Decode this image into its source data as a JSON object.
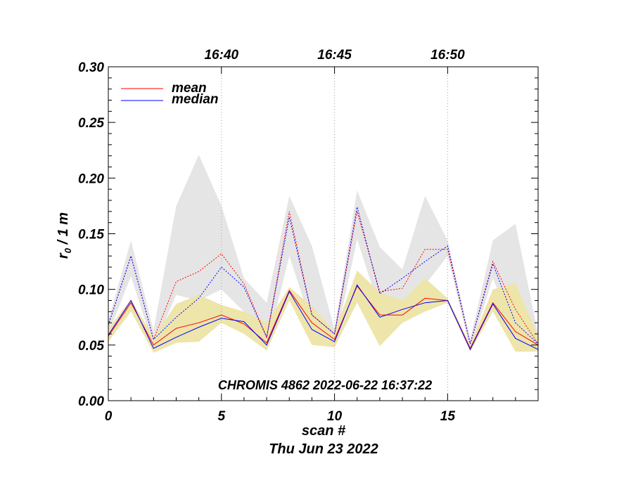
{
  "chart_data": {
    "type": "line",
    "title": "",
    "annotation": "CHROMIS 4862 2022-06-22 16:37:22",
    "xlabel": "scan #",
    "xlabel2": "Thu Jun 23 2022",
    "ylabel_main": "r",
    "ylabel_sub": "0",
    "ylabel_rest": " / 1 m",
    "xlim": [
      0,
      19
    ],
    "ylim": [
      0,
      0.3
    ],
    "x_ticks": [
      0,
      5,
      10,
      15
    ],
    "x_tick_labels": [
      "0",
      "5",
      "10",
      "15"
    ],
    "y_ticks": [
      0,
      0.05,
      0.1,
      0.15,
      0.2,
      0.25,
      0.3
    ],
    "y_tick_labels": [
      "0.00",
      "0.05",
      "0.10",
      "0.15",
      "0.20",
      "0.25",
      "0.30"
    ],
    "top_axis": {
      "tick_positions": [
        5,
        10,
        15
      ],
      "labels": [
        "16:40",
        "16:45",
        "16:50"
      ]
    },
    "legend_position": "top-left",
    "x": [
      0,
      1,
      2,
      3,
      4,
      5,
      6,
      7,
      8,
      9,
      10,
      11,
      12,
      13,
      14,
      15,
      16,
      17,
      18,
      19
    ],
    "series": [
      {
        "name": "mean",
        "color": "#ff0000",
        "style": "solid",
        "legend": true,
        "values": [
          0.058,
          0.088,
          0.05,
          0.065,
          0.07,
          0.077,
          0.069,
          0.052,
          0.099,
          0.07,
          0.055,
          0.103,
          0.077,
          0.077,
          0.092,
          0.09,
          0.047,
          0.088,
          0.062,
          0.05
        ]
      },
      {
        "name": "median",
        "color": "#0000ff",
        "style": "solid",
        "legend": true,
        "values": [
          0.059,
          0.09,
          0.047,
          0.057,
          0.066,
          0.074,
          0.071,
          0.05,
          0.098,
          0.064,
          0.053,
          0.104,
          0.075,
          0.082,
          0.088,
          0.09,
          0.046,
          0.087,
          0.056,
          0.046
        ]
      },
      {
        "name": "mean (dotted)",
        "color": "#ff0000",
        "style": "dotted",
        "legend": false,
        "values": [
          0.068,
          0.13,
          0.055,
          0.107,
          0.116,
          0.132,
          0.105,
          0.057,
          0.17,
          0.077,
          0.06,
          0.17,
          0.098,
          0.101,
          0.136,
          0.136,
          0.051,
          0.125,
          0.082,
          0.051
        ]
      },
      {
        "name": "median (dotted)",
        "color": "#0000ff",
        "style": "dotted",
        "legend": false,
        "values": [
          0.068,
          0.13,
          0.055,
          0.075,
          0.092,
          0.12,
          0.102,
          0.057,
          0.165,
          0.077,
          0.06,
          0.174,
          0.096,
          0.11,
          0.125,
          0.139,
          0.051,
          0.123,
          0.07,
          0.051
        ]
      }
    ],
    "bands": [
      {
        "name": "gray range",
        "color": "#e5e5e5",
        "upper": [
          0.072,
          0.144,
          0.063,
          0.175,
          0.221,
          0.175,
          0.11,
          0.088,
          0.184,
          0.139,
          0.064,
          0.189,
          0.138,
          0.118,
          0.184,
          0.144,
          0.055,
          0.144,
          0.159,
          0.06
        ],
        "lower": [
          0.06,
          0.112,
          0.048,
          0.095,
          0.09,
          0.1,
          0.08,
          0.048,
          0.13,
          0.068,
          0.05,
          0.145,
          0.082,
          0.085,
          0.104,
          0.13,
          0.046,
          0.11,
          0.058,
          0.046
        ]
      },
      {
        "name": "yellow range",
        "color": "#ede5aa",
        "upper": [
          0.065,
          0.091,
          0.057,
          0.087,
          0.095,
          0.086,
          0.08,
          0.07,
          0.102,
          0.085,
          0.062,
          0.117,
          0.097,
          0.09,
          0.11,
          0.092,
          0.05,
          0.1,
          0.106,
          0.058
        ],
        "lower": [
          0.053,
          0.08,
          0.043,
          0.052,
          0.053,
          0.07,
          0.06,
          0.045,
          0.09,
          0.05,
          0.048,
          0.088,
          0.049,
          0.07,
          0.08,
          0.088,
          0.044,
          0.08,
          0.044,
          0.044
        ]
      }
    ]
  }
}
